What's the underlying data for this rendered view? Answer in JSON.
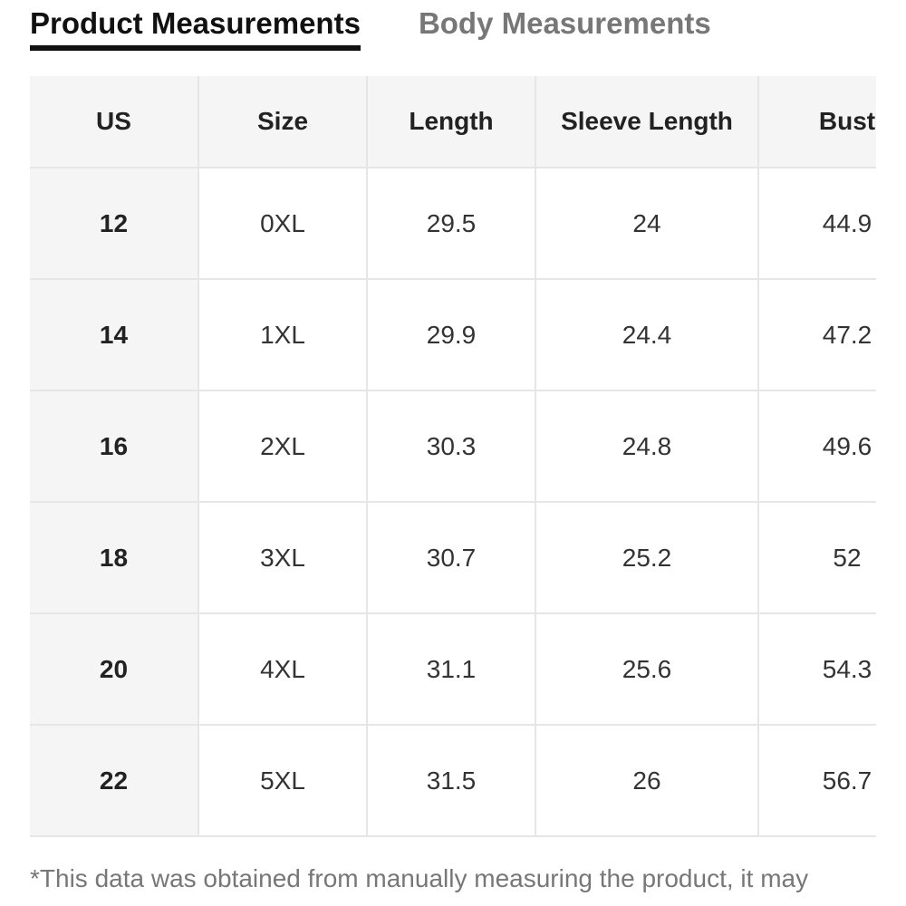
{
  "tabs": [
    {
      "label": "Product Measurements",
      "active": true
    },
    {
      "label": "Body Measurements",
      "active": false
    }
  ],
  "table": {
    "headers": [
      "US",
      "Size",
      "Length",
      "Sleeve Length",
      "Bust"
    ],
    "rows": [
      [
        "12",
        "0XL",
        "29.5",
        "24",
        "44.9"
      ],
      [
        "14",
        "1XL",
        "29.9",
        "24.4",
        "47.2"
      ],
      [
        "16",
        "2XL",
        "30.3",
        "24.8",
        "49.6"
      ],
      [
        "18",
        "3XL",
        "30.7",
        "25.2",
        "52"
      ],
      [
        "20",
        "4XL",
        "31.1",
        "25.6",
        "54.3"
      ],
      [
        "22",
        "5XL",
        "31.5",
        "26",
        "56.7"
      ]
    ]
  },
  "footnote": "*This data was obtained from manually measuring the product, it may",
  "colors": {
    "active_tab": "#111111",
    "inactive_tab": "#777777",
    "header_bg": "#f5f5f5",
    "border": "#e6e6e6"
  }
}
